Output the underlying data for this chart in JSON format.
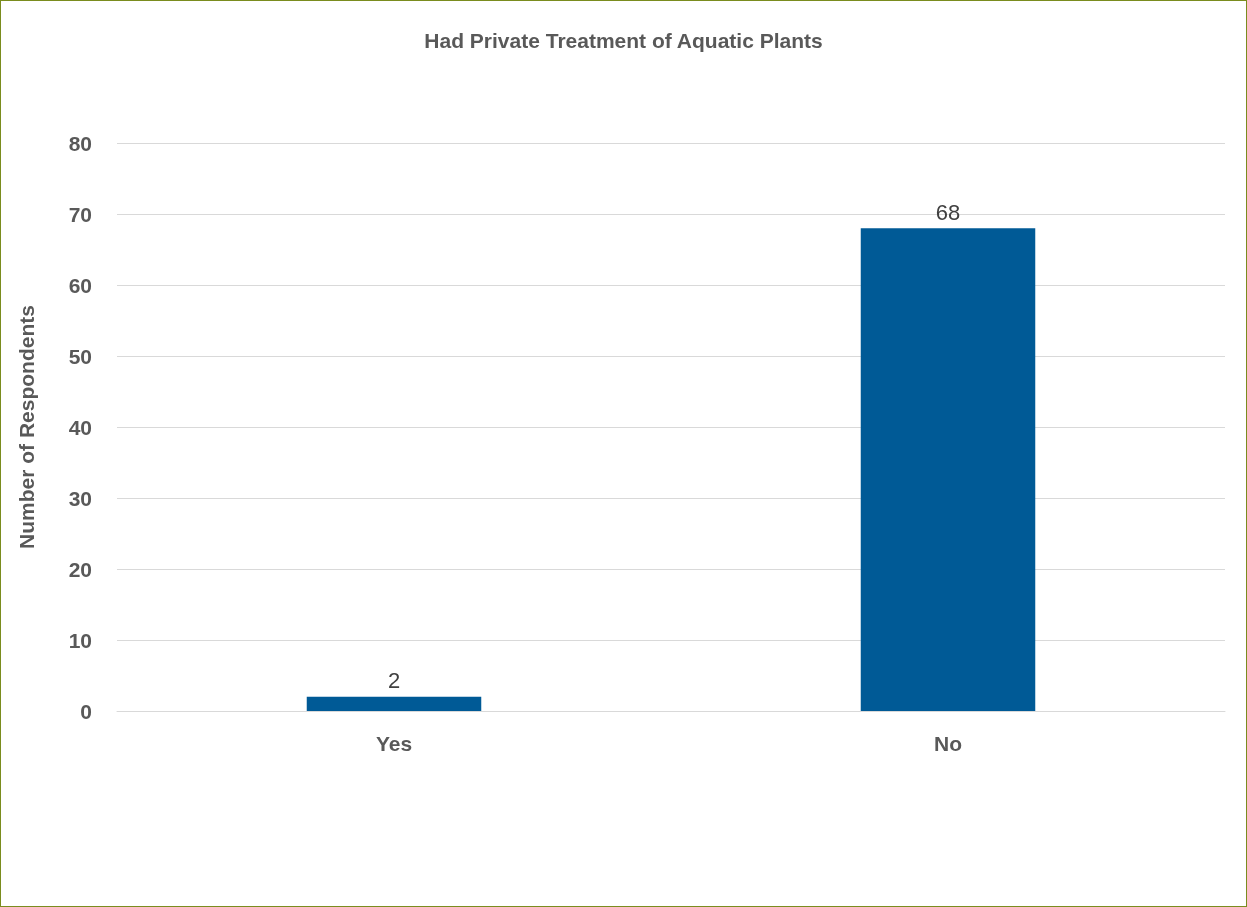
{
  "chart_data": {
    "type": "bar",
    "title": "Had Private Treatment of Aquatic Plants",
    "ylabel": "Number of Respondents",
    "categories": [
      "Yes",
      "No"
    ],
    "values": [
      2,
      68
    ],
    "color": "#005a96",
    "ylim": [
      0,
      80
    ],
    "yticks": [
      0,
      10,
      20,
      30,
      40,
      50,
      60,
      70,
      80
    ],
    "grid": "y",
    "data_labels": true
  }
}
